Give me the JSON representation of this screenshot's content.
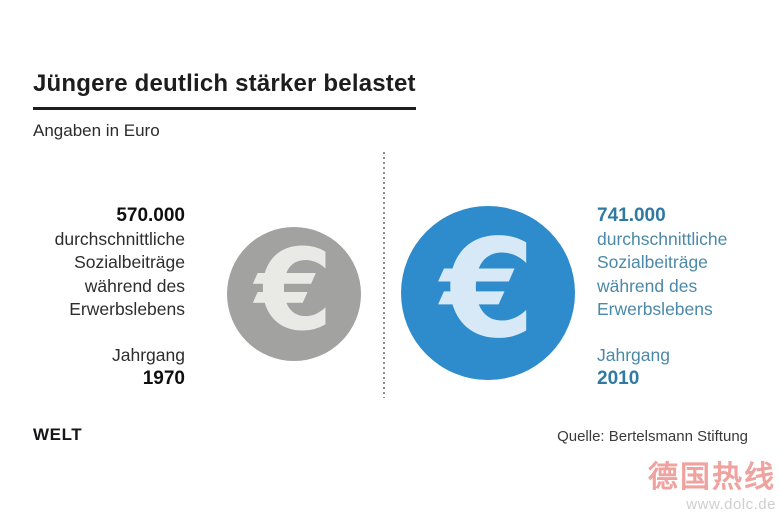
{
  "header": {
    "title": "Jüngere deutlich stärker belastet",
    "subtitle": "Angaben in Euro"
  },
  "comparison": {
    "euro_symbol": "€",
    "left": {
      "value": "570.000",
      "desc_lines": [
        "durchschnittliche",
        "Sozialbeiträge",
        "während des",
        "Erwerbslebens"
      ],
      "cohort_label": "Jahrgang",
      "cohort_year": "1970",
      "coin_color": "#a2a2a0",
      "euro_glyph_color": "#e9e9e6",
      "text_color": "#2d2d2d"
    },
    "right": {
      "value": "741.000",
      "desc_lines": [
        "durchschnittliche",
        "Sozialbeiträge",
        "während des",
        "Erwerbslebens"
      ],
      "cohort_label": "Jahrgang",
      "cohort_year": "2010",
      "coin_color": "#2f8ccc",
      "euro_glyph_color": "#d7e9f6",
      "text_color": "#4b89a8"
    }
  },
  "footer": {
    "brand": "WELT",
    "source": "Quelle: Bertelsmann Stiftung"
  },
  "watermark": {
    "text": "德国热线",
    "url": "www.dolc.de"
  },
  "chart_data": {
    "type": "bar",
    "variant": "pictogram comparison (euro coin sized by value)",
    "title": "Jüngere deutlich stärker belastet",
    "subtitle": "Angaben in Euro",
    "categories": [
      "Jahrgang 1970",
      "Jahrgang 2010"
    ],
    "values": [
      570000,
      741000
    ],
    "value_labels": [
      "570.000",
      "741.000"
    ],
    "unit": "Euro",
    "measure": "durchschnittliche Sozialbeiträge während des Erwerbslebens",
    "series_colors": [
      "#a2a2a0",
      "#2f8ccc"
    ],
    "source": "Quelle: Bertelsmann Stiftung",
    "legend_position": "none",
    "grid": false
  }
}
